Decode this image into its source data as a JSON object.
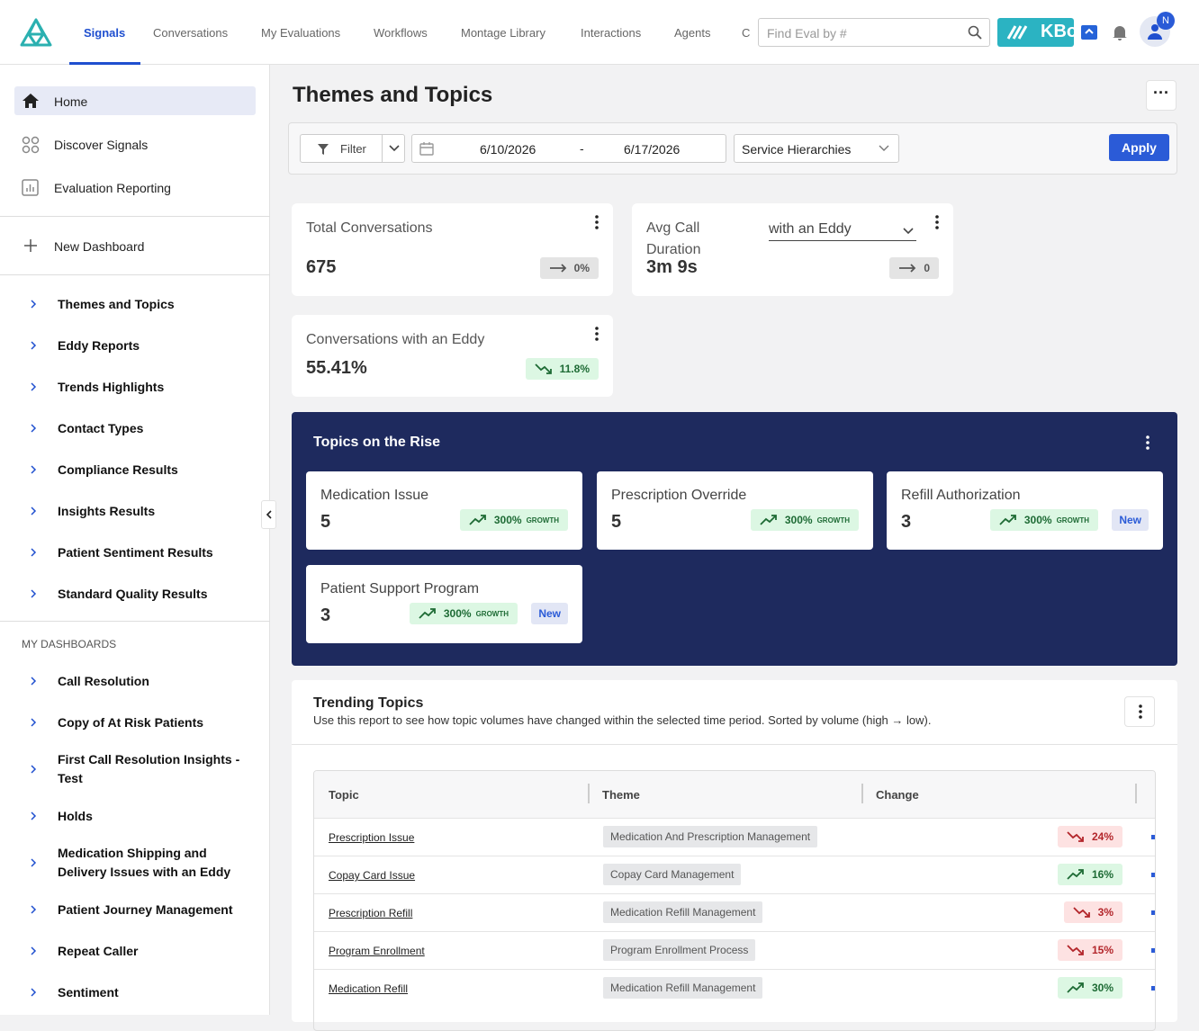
{
  "nav": {
    "tabs": [
      "Signals",
      "Conversations",
      "My Evaluations",
      "Workflows",
      "Montage Library",
      "Interactions",
      "Agents",
      "C"
    ],
    "search_placeholder": "Find Eval by #",
    "brand": "KBo",
    "avatar": "N"
  },
  "sidebar": {
    "main": [
      "Home",
      "Discover Signals",
      "Evaluation Reporting"
    ],
    "new_dashboard": "New Dashboard",
    "reports": [
      "Themes and Topics",
      "Eddy Reports",
      "Trends Highlights",
      "Contact Types",
      "Compliance Results",
      "Insights Results",
      "Patient Sentiment Results",
      "Standard Quality Results"
    ],
    "my_dashboards_title": "MY DASHBOARDS",
    "my_dashboards": [
      "Call Resolution",
      "Copy of At Risk Patients",
      "First Call Resolution Insights - Test",
      "Holds",
      "Medication Shipping and Delivery Issues with an Eddy",
      "Patient Journey Management",
      "Repeat Caller",
      "Sentiment"
    ]
  },
  "page": {
    "title": "Themes and Topics"
  },
  "filters": {
    "filter": "Filter",
    "start_date": "6/10/2026",
    "separator": "-",
    "end_date": "6/17/2026",
    "hierarchy": "Service Hierarchies",
    "apply": "Apply"
  },
  "kpis": [
    {
      "title": "Total Conversations",
      "value": "675",
      "change": "0%",
      "trend": "flat"
    },
    {
      "title": "Avg Call Duration",
      "selector": "with an Eddy",
      "value": "3m 9s",
      "change": "0",
      "trend": "flat"
    },
    {
      "title": "Conversations with an Eddy",
      "value": "55.41%",
      "change": "11.8%",
      "trend": "down"
    }
  ],
  "rise": {
    "title": "Topics on the Rise",
    "growth_label": "GROWTH",
    "topics": [
      {
        "name": "Medication Issue",
        "count": "5",
        "growth": "300%"
      },
      {
        "name": "Prescription Override",
        "count": "5",
        "growth": "300%"
      },
      {
        "name": "Refill Authorization",
        "count": "3",
        "growth": "300%",
        "badge": "New"
      },
      {
        "name": "Patient Support Program",
        "count": "3",
        "growth": "300%",
        "badge": "New"
      }
    ]
  },
  "trending": {
    "title": "Trending Topics",
    "subtitle": "Use this report to see how topic volumes have changed within the selected time period. Sorted by volume (high → low).",
    "columns": [
      "Topic",
      "Theme",
      "Change"
    ],
    "rows": [
      {
        "topic": "Prescription Issue",
        "theme": "Medication And Prescription Management",
        "change": "24%",
        "trend": "down"
      },
      {
        "topic": "Copay Card Issue",
        "theme": "Copay Card Management",
        "change": "16%",
        "trend": "up"
      },
      {
        "topic": "Prescription Refill",
        "theme": "Medication Refill Management",
        "change": "3%",
        "trend": "down"
      },
      {
        "topic": "Program Enrollment",
        "theme": "Program Enrollment Process",
        "change": "15%",
        "trend": "down"
      },
      {
        "topic": "Medication Refill",
        "theme": "Medication Refill Management",
        "change": "30%",
        "trend": "up"
      }
    ]
  }
}
